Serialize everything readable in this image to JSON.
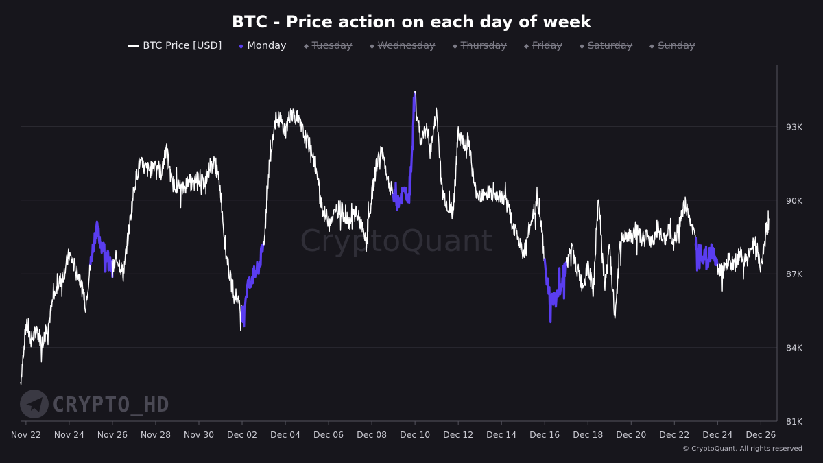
{
  "chart_data": {
    "type": "line",
    "title": "BTC - Price action on each day of week",
    "legend": [
      {
        "name": "BTC Price [USD]",
        "marker": "line",
        "active": true
      },
      {
        "name": "Monday",
        "marker": "diamond",
        "active": true
      },
      {
        "name": "Tuesday",
        "marker": "diamond",
        "active": false
      },
      {
        "name": "Wednesday",
        "marker": "diamond",
        "active": false
      },
      {
        "name": "Thursday",
        "marker": "diamond",
        "active": false
      },
      {
        "name": "Friday",
        "marker": "diamond",
        "active": false
      },
      {
        "name": "Saturday",
        "marker": "diamond",
        "active": false
      },
      {
        "name": "Sunday",
        "marker": "diamond",
        "active": false
      }
    ],
    "legend_position": "top-center",
    "y_axis": {
      "side": "right",
      "ticks": [
        81000,
        84000,
        87000,
        90000,
        93000
      ],
      "tick_labels": [
        "81K",
        "84K",
        "87K",
        "90K",
        "93K"
      ],
      "ylim": [
        81000,
        95500
      ],
      "grid": true
    },
    "x_axis": {
      "type": "date",
      "range": [
        "2024-11-21T18:00",
        "2024-12-26T18:00"
      ],
      "ticks": [
        "2024-11-22",
        "2024-11-24",
        "2024-11-26",
        "2024-11-28",
        "2024-11-30",
        "2024-12-02",
        "2024-12-04",
        "2024-12-06",
        "2024-12-08",
        "2024-12-10",
        "2024-12-12",
        "2024-12-14",
        "2024-12-16",
        "2024-12-18",
        "2024-12-20",
        "2024-12-22",
        "2024-12-24",
        "2024-12-26"
      ],
      "tick_labels": [
        "Nov 22",
        "Nov 24",
        "Nov 26",
        "Nov 28",
        "Nov 30",
        "Dec 02",
        "Dec 04",
        "Dec 06",
        "Dec 08",
        "Dec 10",
        "Dec 12",
        "Dec 14",
        "Dec 16",
        "Dec 18",
        "Dec 20",
        "Dec 22",
        "Dec 24",
        "Dec 26"
      ]
    },
    "series": [
      {
        "name": "BTC Price [USD]",
        "color": "#ffffff",
        "points": [
          [
            "2024-11-21T18:00",
            82600
          ],
          [
            "2024-11-22T00:00",
            84900
          ],
          [
            "2024-11-22T06:00",
            84300
          ],
          [
            "2024-11-22T12:00",
            84700
          ],
          [
            "2024-11-22T18:00",
            84200
          ],
          [
            "2024-11-23T00:00",
            84800
          ],
          [
            "2024-11-23T06:00",
            85900
          ],
          [
            "2024-11-23T12:00",
            86600
          ],
          [
            "2024-11-23T18:00",
            87000
          ],
          [
            "2024-11-24T00:00",
            87800
          ],
          [
            "2024-11-24T06:00",
            87300
          ],
          [
            "2024-11-24T12:00",
            86800
          ],
          [
            "2024-11-24T18:00",
            85700
          ],
          [
            "2024-11-25T00:00",
            87500
          ],
          [
            "2024-11-25T06:00",
            88900
          ],
          [
            "2024-11-25T12:00",
            88200
          ],
          [
            "2024-11-25T18:00",
            87700
          ],
          [
            "2024-11-26T00:00",
            87200
          ],
          [
            "2024-11-26T06:00",
            87600
          ],
          [
            "2024-11-26T12:00",
            87000
          ],
          [
            "2024-11-26T18:00",
            88700
          ],
          [
            "2024-11-27T00:00",
            90500
          ],
          [
            "2024-11-27T06:00",
            91500
          ],
          [
            "2024-11-27T12:00",
            91300
          ],
          [
            "2024-11-27T18:00",
            91200
          ],
          [
            "2024-11-28T00:00",
            91600
          ],
          [
            "2024-11-28T06:00",
            91100
          ],
          [
            "2024-11-28T12:00",
            92100
          ],
          [
            "2024-11-28T18:00",
            90700
          ],
          [
            "2024-11-29T00:00",
            90600
          ],
          [
            "2024-11-29T06:00",
            90400
          ],
          [
            "2024-11-29T12:00",
            90800
          ],
          [
            "2024-11-29T18:00",
            90600
          ],
          [
            "2024-11-30T00:00",
            91000
          ],
          [
            "2024-11-30T06:00",
            90600
          ],
          [
            "2024-11-30T12:00",
            91400
          ],
          [
            "2024-11-30T18:00",
            91500
          ],
          [
            "2024-12-01T00:00",
            90400
          ],
          [
            "2024-12-01T06:00",
            87800
          ],
          [
            "2024-12-01T12:00",
            86600
          ],
          [
            "2024-12-01T18:00",
            86000
          ],
          [
            "2024-12-02T00:00",
            85200
          ],
          [
            "2024-12-02T06:00",
            86500
          ],
          [
            "2024-12-02T12:00",
            86900
          ],
          [
            "2024-12-02T18:00",
            87200
          ],
          [
            "2024-12-03T00:00",
            88200
          ],
          [
            "2024-12-03T06:00",
            91400
          ],
          [
            "2024-12-03T12:00",
            93200
          ],
          [
            "2024-12-03T18:00",
            93300
          ],
          [
            "2024-12-04T00:00",
            92800
          ],
          [
            "2024-12-04T06:00",
            93600
          ],
          [
            "2024-12-04T12:00",
            93400
          ],
          [
            "2024-12-04T18:00",
            92900
          ],
          [
            "2024-12-05T00:00",
            92400
          ],
          [
            "2024-12-05T06:00",
            92000
          ],
          [
            "2024-12-05T12:00",
            90800
          ],
          [
            "2024-12-05T18:00",
            89500
          ],
          [
            "2024-12-06T00:00",
            89200
          ],
          [
            "2024-12-06T06:00",
            89400
          ],
          [
            "2024-12-06T12:00",
            89700
          ],
          [
            "2024-12-06T18:00",
            89400
          ],
          [
            "2024-12-07T00:00",
            89100
          ],
          [
            "2024-12-07T06:00",
            89600
          ],
          [
            "2024-12-07T12:00",
            89000
          ],
          [
            "2024-12-07T18:00",
            88200
          ],
          [
            "2024-12-08T00:00",
            90200
          ],
          [
            "2024-12-08T06:00",
            91600
          ],
          [
            "2024-12-08T12:00",
            92000
          ],
          [
            "2024-12-08T18:00",
            90800
          ],
          [
            "2024-12-09T00:00",
            90200
          ],
          [
            "2024-12-09T06:00",
            89900
          ],
          [
            "2024-12-09T12:00",
            90400
          ],
          [
            "2024-12-09T18:00",
            90100
          ],
          [
            "2024-12-10T00:00",
            94400
          ],
          [
            "2024-12-10T06:00",
            92400
          ],
          [
            "2024-12-10T12:00",
            92900
          ],
          [
            "2024-12-10T18:00",
            92200
          ],
          [
            "2024-12-11T00:00",
            93600
          ],
          [
            "2024-12-11T06:00",
            90400
          ],
          [
            "2024-12-11T12:00",
            89800
          ],
          [
            "2024-12-11T18:00",
            89500
          ],
          [
            "2024-12-12T00:00",
            92700
          ],
          [
            "2024-12-12T06:00",
            92300
          ],
          [
            "2024-12-12T12:00",
            92400
          ],
          [
            "2024-12-12T18:00",
            90500
          ],
          [
            "2024-12-13T00:00",
            90200
          ],
          [
            "2024-12-13T06:00",
            90400
          ],
          [
            "2024-12-13T12:00",
            90300
          ],
          [
            "2024-12-13T18:00",
            90000
          ],
          [
            "2024-12-14T00:00",
            90200
          ],
          [
            "2024-12-14T06:00",
            89800
          ],
          [
            "2024-12-14T12:00",
            89100
          ],
          [
            "2024-12-14T18:00",
            88500
          ],
          [
            "2024-12-15T00:00",
            87700
          ],
          [
            "2024-12-15T06:00",
            88700
          ],
          [
            "2024-12-15T12:00",
            89600
          ],
          [
            "2024-12-15T18:00",
            89800
          ],
          [
            "2024-12-16T00:00",
            87400
          ],
          [
            "2024-12-16T06:00",
            86000
          ],
          [
            "2024-12-16T12:00",
            85900
          ],
          [
            "2024-12-16T18:00",
            86600
          ],
          [
            "2024-12-17T00:00",
            87400
          ],
          [
            "2024-12-17T06:00",
            88000
          ],
          [
            "2024-12-17T12:00",
            87200
          ],
          [
            "2024-12-17T18:00",
            86500
          ],
          [
            "2024-12-18T00:00",
            87300
          ],
          [
            "2024-12-18T06:00",
            86300
          ],
          [
            "2024-12-18T12:00",
            90200
          ],
          [
            "2024-12-18T18:00",
            86400
          ],
          [
            "2024-12-19T00:00",
            88000
          ],
          [
            "2024-12-19T06:00",
            85200
          ],
          [
            "2024-12-19T12:00",
            88300
          ],
          [
            "2024-12-19T18:00",
            88600
          ],
          [
            "2024-12-20T00:00",
            88500
          ],
          [
            "2024-12-20T06:00",
            88700
          ],
          [
            "2024-12-20T12:00",
            88400
          ],
          [
            "2024-12-20T18:00",
            88500
          ],
          [
            "2024-12-21T00:00",
            88400
          ],
          [
            "2024-12-21T06:00",
            88900
          ],
          [
            "2024-12-21T12:00",
            88300
          ],
          [
            "2024-12-21T18:00",
            88800
          ],
          [
            "2024-12-22T00:00",
            88100
          ],
          [
            "2024-12-22T06:00",
            89200
          ],
          [
            "2024-12-22T12:00",
            89800
          ],
          [
            "2024-12-22T18:00",
            89200
          ],
          [
            "2024-12-23T00:00",
            88200
          ],
          [
            "2024-12-23T06:00",
            87900
          ],
          [
            "2024-12-23T12:00",
            87500
          ],
          [
            "2024-12-23T18:00",
            88000
          ],
          [
            "2024-12-24T00:00",
            87200
          ],
          [
            "2024-12-24T06:00",
            87100
          ],
          [
            "2024-12-24T12:00",
            87600
          ],
          [
            "2024-12-24T18:00",
            87300
          ],
          [
            "2024-12-25T00:00",
            87800
          ],
          [
            "2024-12-25T06:00",
            87600
          ],
          [
            "2024-12-25T12:00",
            87900
          ],
          [
            "2024-12-25T18:00",
            88300
          ],
          [
            "2024-12-26T00:00",
            87200
          ],
          [
            "2024-12-26T06:00",
            88700
          ],
          [
            "2024-12-26T09:00",
            89200
          ]
        ]
      }
    ],
    "highlight": {
      "name": "Monday",
      "color": "#5a3df0",
      "days": [
        "2024-11-25",
        "2024-12-02",
        "2024-12-09",
        "2024-12-16",
        "2024-12-23"
      ]
    },
    "watermarks": [
      "CryptoQuant",
      "CRYPTO_HD"
    ],
    "footer": "© CryptoQuant. All rights reserved"
  }
}
